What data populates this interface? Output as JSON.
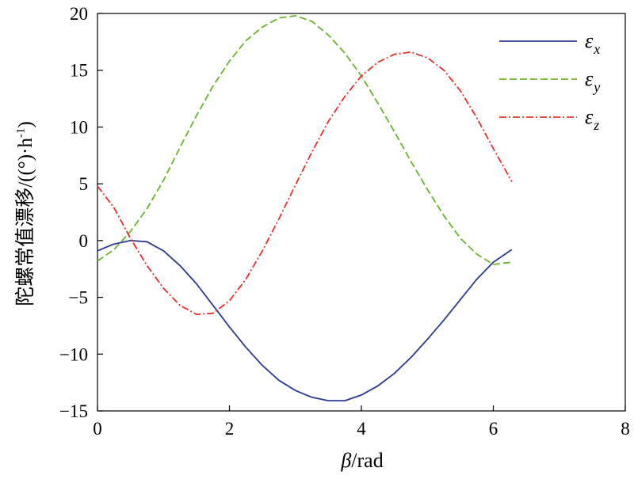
{
  "chart_data": {
    "type": "line",
    "title": "",
    "xlabel": "β/rad",
    "xlabel_symbol": "β",
    "xlabel_unit": "/rad",
    "ylabel": "陀螺常值漂移/((°)·h-1)",
    "ylabel_main": "陀螺常值漂移/((°)·h",
    "ylabel_sup": "-1",
    "ylabel_tail": ")",
    "xlim": [
      0,
      8
    ],
    "ylim": [
      -15,
      20
    ],
    "xticks": [
      0,
      2,
      4,
      6,
      8
    ],
    "yticks": [
      -15,
      -10,
      -5,
      0,
      5,
      10,
      15,
      20
    ],
    "xtick_labels": [
      "0",
      "2",
      "4",
      "6",
      "8"
    ],
    "ytick_labels": [
      "−15",
      "−10",
      "−5",
      "0",
      "5",
      "10",
      "15",
      "20"
    ],
    "grid": false,
    "legend_position": "top-right",
    "series": [
      {
        "name": "εx",
        "symbol": "ε",
        "subscript": "x",
        "color": "#2b3990",
        "style": "solid",
        "x": [
          0,
          0.25,
          0.5,
          0.75,
          1.0,
          1.25,
          1.5,
          1.75,
          2.0,
          2.25,
          2.5,
          2.75,
          3.0,
          3.25,
          3.5,
          3.75,
          4.0,
          4.25,
          4.5,
          4.75,
          5.0,
          5.25,
          5.5,
          5.75,
          6.0,
          6.28
        ],
        "y": [
          -0.9,
          -0.3,
          0.0,
          -0.1,
          -0.9,
          -2.2,
          -3.8,
          -5.7,
          -7.6,
          -9.4,
          -11.0,
          -12.3,
          -13.2,
          -13.8,
          -14.1,
          -14.1,
          -13.6,
          -12.8,
          -11.7,
          -10.3,
          -8.7,
          -7.0,
          -5.2,
          -3.4,
          -1.9,
          -0.8
        ]
      },
      {
        "name": "εy",
        "symbol": "ε",
        "subscript": "y",
        "color": "#6ab42d",
        "style": "dashed",
        "x": [
          0,
          0.25,
          0.5,
          0.75,
          1.0,
          1.25,
          1.5,
          1.75,
          2.0,
          2.25,
          2.5,
          2.75,
          3.0,
          3.25,
          3.5,
          3.75,
          4.0,
          4.25,
          4.5,
          4.75,
          5.0,
          5.25,
          5.5,
          5.75,
          6.0,
          6.28
        ],
        "y": [
          -1.8,
          -0.8,
          0.8,
          2.8,
          5.3,
          8.2,
          11.0,
          13.6,
          15.8,
          17.6,
          18.8,
          19.6,
          19.8,
          19.3,
          18.1,
          16.5,
          14.5,
          12.1,
          9.6,
          7.0,
          4.5,
          2.2,
          0.2,
          -1.2,
          -2.1,
          -1.9
        ]
      },
      {
        "name": "εz",
        "symbol": "ε",
        "subscript": "z",
        "color": "#e8302a",
        "style": "dashdot",
        "x": [
          0,
          0.25,
          0.5,
          0.75,
          1.0,
          1.25,
          1.5,
          1.75,
          2.0,
          2.25,
          2.5,
          2.75,
          3.0,
          3.25,
          3.5,
          3.75,
          4.0,
          4.25,
          4.5,
          4.75,
          5.0,
          5.25,
          5.5,
          5.75,
          6.0,
          6.28
        ],
        "y": [
          4.8,
          2.9,
          0.2,
          -2.2,
          -4.2,
          -5.7,
          -6.5,
          -6.4,
          -5.3,
          -3.4,
          -0.9,
          1.9,
          4.9,
          7.8,
          10.5,
          12.7,
          14.5,
          15.7,
          16.4,
          16.6,
          16.1,
          15.0,
          13.2,
          10.8,
          8.1,
          5.2
        ]
      }
    ]
  }
}
